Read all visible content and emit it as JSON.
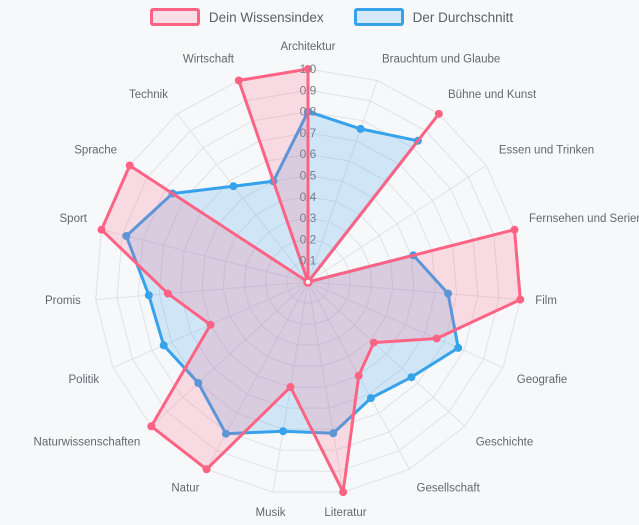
{
  "legend": {
    "series1": "Dein Wissensindex",
    "series2": "Der Durchschnitt"
  },
  "colors": {
    "series1_line": "#ff6384",
    "series1_fill": "rgba(255,99,132,0.2)",
    "series2_line": "#36a2eb",
    "series2_fill": "rgba(54,162,235,0.2)",
    "grid": "#e1e1e6",
    "tick_text": "#7d7d88",
    "category_text": "#66666f",
    "background": "#f7f8fa"
  },
  "chart_data": {
    "type": "radar",
    "title": "",
    "legend_position": "top",
    "grid": true,
    "axis_range": [
      0,
      1.0
    ],
    "ring_step": 0.1,
    "ticks": [
      "0.1",
      "0.2",
      "0.3",
      "0.4",
      "0.5",
      "0.6",
      "0.7",
      "0.8",
      "0.9",
      "1.0"
    ],
    "categories": [
      "Architektur",
      "Brauchtum und Glaube",
      "Bühne und Kunst",
      "Essen und Trinken",
      "Fernsehen und Serien",
      "Film",
      "Geografie",
      "Geschichte",
      "Gesellschaft",
      "Literatur",
      "Musik",
      "Natur",
      "Naturwissenschaften",
      "Politik",
      "Promis",
      "Sport",
      "Sprache",
      "Technik",
      "Wirtschaft"
    ],
    "series": [
      {
        "name": "Dein Wissensindex",
        "values": [
          1.0,
          0,
          1.0,
          0,
          1.0,
          1.0,
          0.66,
          0.42,
          0.5,
          1.0,
          0.5,
          1.0,
          1.0,
          0.5,
          0.66,
          1.0,
          1.0,
          0,
          1.0
        ]
      },
      {
        "name": "Der Durchschnitt",
        "values": [
          0.8,
          0.76,
          0.84,
          0,
          0.51,
          0.66,
          0.77,
          0.66,
          0.62,
          0.72,
          0.71,
          0.81,
          0.7,
          0.74,
          0.75,
          0.88,
          0.76,
          0.57,
          0.5
        ]
      }
    ]
  }
}
